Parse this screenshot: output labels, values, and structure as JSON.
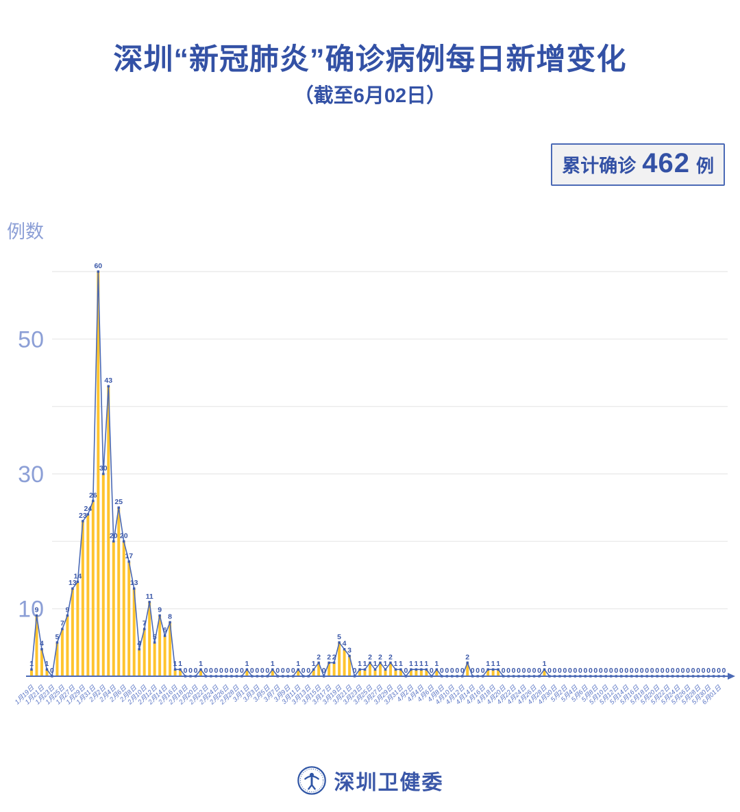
{
  "header": {
    "title": "深圳“新冠肺炎”确诊病例每日新增变化",
    "subtitle": "（截至6月02日）"
  },
  "summary_badge": {
    "prefix": "累计确诊",
    "value": "462",
    "unit": "例"
  },
  "y_axis_label": "例数",
  "footer": {
    "org_name": "深圳卫健委",
    "logo": "shenzhen-health-commission-emblem"
  },
  "chart_data": {
    "type": "bar",
    "line_overlay": true,
    "title": "深圳“新冠肺炎”确诊病例每日新增变化",
    "subtitle": "（截至6月02日）",
    "ylabel": "例数",
    "ylim": [
      0,
      60
    ],
    "grid": true,
    "gridline_values": [
      10,
      20,
      30,
      40,
      50,
      60
    ],
    "y_tick_labels": [
      50,
      30,
      10
    ],
    "x_tick_interval_days": 2,
    "x_tick_labels": [
      "1月19日",
      "1月21日",
      "1月23日",
      "1月25日",
      "1月27日",
      "1月29日",
      "1月31日",
      "2月2日",
      "2月4日",
      "2月6日",
      "2月8日",
      "2月10日",
      "2月12日",
      "2月14日",
      "2月16日",
      "2月18日",
      "2月20日",
      "2月22日",
      "2月24日",
      "2月26日",
      "2月28日",
      "3月1日",
      "3月3日",
      "3月5日",
      "3月7日",
      "3月9日",
      "3月11日",
      "3月13日",
      "3月15日",
      "3月17日",
      "3月19日",
      "3月21日",
      "3月23日",
      "3月25日",
      "3月27日",
      "3月29日",
      "3月31日",
      "4月2日",
      "4月4日",
      "4月6日",
      "4月8日",
      "4月10日",
      "4月12日",
      "4月14日",
      "4月16日",
      "4月18日",
      "4月20日",
      "4月22日",
      "4月24日",
      "4月26日",
      "4月28日",
      "4月30日",
      "5月2日",
      "5月4日",
      "5月6日",
      "5月8日",
      "5月10日",
      "5月12日",
      "5月14日",
      "5月16日",
      "5月18日",
      "5月20日",
      "5月22日",
      "5月24日",
      "5月26日",
      "5月28日",
      "5月30日",
      "6月01日"
    ],
    "values": [
      1,
      9,
      4,
      1,
      0,
      5,
      7,
      9,
      13,
      14,
      23,
      24,
      26,
      60,
      30,
      43,
      20,
      25,
      20,
      17,
      13,
      4,
      7,
      11,
      5,
      9,
      6,
      8,
      1,
      1,
      0,
      0,
      0,
      1,
      0,
      0,
      0,
      0,
      0,
      0,
      0,
      0,
      1,
      0,
      0,
      0,
      0,
      1,
      0,
      0,
      0,
      0,
      1,
      0,
      0,
      1,
      2,
      0,
      2,
      2,
      5,
      4,
      3,
      0,
      1,
      1,
      2,
      1,
      2,
      1,
      2,
      1,
      1,
      0,
      1,
      1,
      1,
      1,
      0,
      1,
      0,
      0,
      0,
      0,
      0,
      2,
      0,
      0,
      0,
      1,
      1,
      1,
      0,
      0,
      0,
      0,
      0,
      0,
      0,
      0,
      1,
      0,
      0,
      0,
      0,
      0,
      0,
      0,
      0,
      0,
      0,
      0,
      0,
      0,
      0,
      0,
      0,
      0,
      0,
      0,
      0,
      0,
      0,
      0,
      0,
      0,
      0,
      0,
      0,
      0,
      0,
      0,
      0,
      0,
      0,
      0
    ],
    "total": 462,
    "colors": {
      "bar": "#FFC42E",
      "line": "#4A69B5",
      "point": "#3D5CAD",
      "value_label": "#3A57A8",
      "x_tick": "#5B76C5",
      "y_tick": "#8C9FD6",
      "gridline": "#E7E7E7",
      "axis": "#4A69B5",
      "title": "#3351A5"
    }
  }
}
